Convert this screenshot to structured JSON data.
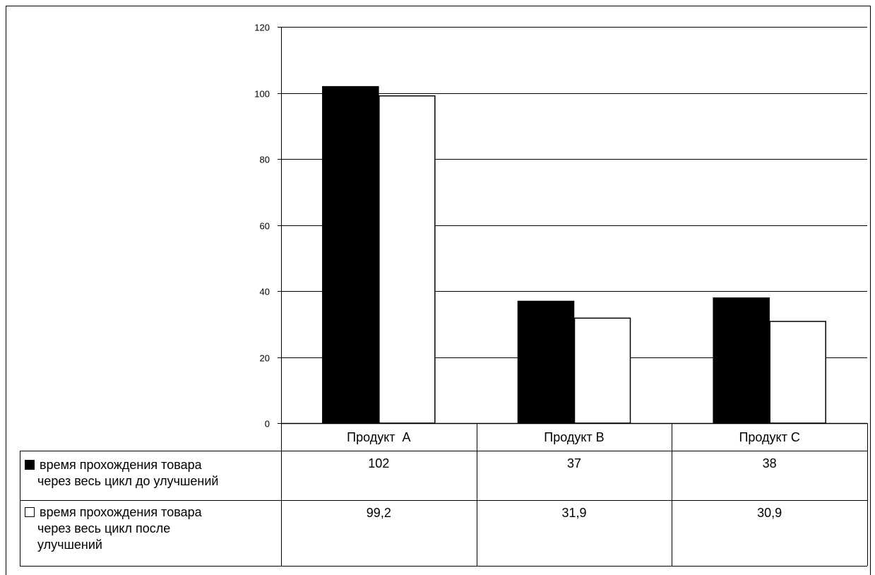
{
  "chart_data": {
    "type": "bar",
    "categories": [
      "Продукт  А",
      "Продукт В",
      "Продукт С"
    ],
    "series": [
      {
        "name": "время прохождения товара через весь цикл до улучшений",
        "legend_lines": [
          "время прохождения товара",
          "через весь цикл до улучшений"
        ],
        "values": [
          102,
          37,
          38
        ],
        "value_labels": [
          "102",
          "37",
          "38"
        ],
        "fill": "#000000"
      },
      {
        "name": "время прохождения товара через весь цикл после улучшений",
        "legend_lines": [
          "время прохождения товара",
          "через весь цикл после",
          "улучшений"
        ],
        "values": [
          99.2,
          31.9,
          30.9
        ],
        "value_labels": [
          "99,2",
          "31,9",
          "30,9"
        ],
        "fill": "#ffffff"
      }
    ],
    "title": "",
    "xlabel": "",
    "ylabel": "",
    "ylim": [
      0,
      120
    ],
    "yticks": [
      0,
      20,
      40,
      60,
      80,
      100,
      120
    ],
    "grid": true,
    "legend": "data-table"
  }
}
